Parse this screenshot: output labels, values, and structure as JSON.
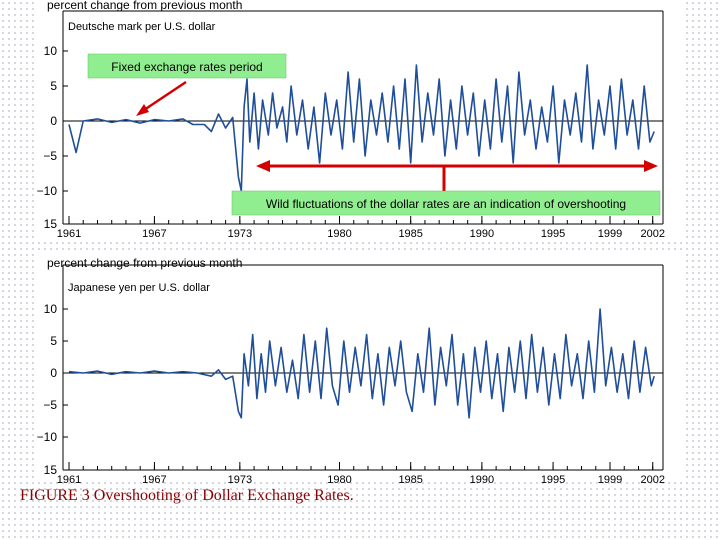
{
  "chart_data": [
    {
      "type": "line",
      "title": "Deutsche mark per U.S. dollar",
      "ylabel": "percent change from previous month",
      "xlabel": "",
      "ylim": [
        -15,
        15
      ],
      "y_ticks": [
        10,
        5,
        0,
        -5,
        -10,
        15
      ],
      "y_tick_labels": [
        "10",
        "5",
        "0",
        "−5",
        "−10",
        "15"
      ],
      "x_ticks": [
        1961,
        1967,
        1973,
        1980,
        1985,
        1990,
        1995,
        1999,
        2002
      ],
      "x_tick_labels": [
        "1961",
        "1967",
        "1973",
        "1980",
        "1985",
        "1990",
        "1995",
        "1999",
        "2002"
      ],
      "xlim": [
        1961,
        2002.3
      ],
      "color": "#1f4e9a",
      "series": [
        {
          "name": "Deutsche mark per U.S. dollar",
          "x": [
            1961.0,
            1961.5,
            1962.0,
            1963.0,
            1964.0,
            1965.0,
            1966.0,
            1967.0,
            1968.0,
            1969.0,
            1969.7,
            1970.5,
            1971.0,
            1971.5,
            1972.0,
            1972.5,
            1972.9,
            1973.1,
            1973.3,
            1973.5,
            1973.7,
            1974.0,
            1974.3,
            1974.6,
            1975.0,
            1975.3,
            1975.6,
            1976.0,
            1976.3,
            1976.6,
            1977.0,
            1977.4,
            1977.8,
            1978.2,
            1978.6,
            1979.0,
            1979.4,
            1979.8,
            1980.2,
            1980.6,
            1981.0,
            1981.4,
            1981.8,
            1982.2,
            1982.6,
            1983.0,
            1983.4,
            1983.8,
            1984.2,
            1984.6,
            1985.0,
            1985.4,
            1985.8,
            1986.2,
            1986.6,
            1987.0,
            1987.4,
            1987.8,
            1988.2,
            1988.6,
            1989.0,
            1989.4,
            1989.8,
            1990.2,
            1990.6,
            1991.0,
            1991.4,
            1991.8,
            1992.2,
            1992.6,
            1993.0,
            1993.4,
            1993.8,
            1994.2,
            1994.6,
            1995.0,
            1995.4,
            1995.8,
            1996.2,
            1996.6,
            1997.0,
            1997.4,
            1997.8,
            1998.2,
            1998.6,
            1999.0,
            1999.4,
            1999.8,
            2000.2,
            2000.6,
            2001.0,
            2001.4,
            2001.8,
            2002.1
          ],
          "values": [
            -0.5,
            -4.5,
            0,
            0.3,
            -0.2,
            0.2,
            -0.3,
            0.2,
            0,
            0.3,
            -0.5,
            -0.5,
            -1.5,
            1,
            -1,
            0.5,
            -8,
            -10,
            2,
            6,
            -3,
            4,
            -4,
            3,
            -2,
            4,
            -1,
            2,
            -3,
            5,
            -2,
            3,
            -4,
            2,
            -6,
            4,
            -2,
            3,
            -4,
            7,
            -3,
            6,
            -5,
            3,
            -2,
            4,
            -3,
            5,
            -4,
            6,
            -6,
            8,
            -3,
            4,
            -2,
            6,
            -5,
            3,
            -4,
            5,
            -2,
            4,
            -5,
            3,
            -4,
            6,
            -3,
            5,
            -6,
            7,
            -2,
            3,
            -4,
            2,
            -3,
            5,
            -6,
            3,
            -2,
            4,
            -3,
            8,
            -4,
            3,
            -2,
            5,
            -4,
            6,
            -2,
            3,
            -4,
            5,
            -3,
            -1.5
          ]
        }
      ],
      "annotations": [
        {
          "text": "Fixed exchange rates period"
        },
        {
          "text": "Wild fluctuations of the dollar rates are an indication of overshooting"
        }
      ]
    },
    {
      "type": "line",
      "title": "Japanese yen per U.S. dollar",
      "ylabel": "percent change from previous month",
      "xlabel": "",
      "ylim": [
        -15,
        15
      ],
      "y_ticks": [
        10,
        5,
        0,
        -5,
        -10,
        15
      ],
      "y_tick_labels": [
        "10",
        "5",
        "0",
        "−5",
        "−10",
        "15"
      ],
      "x_ticks": [
        1961,
        1967,
        1973,
        1980,
        1985,
        1990,
        1995,
        1999,
        2002
      ],
      "x_tick_labels": [
        "1961",
        "1967",
        "1973",
        "1980",
        "1985",
        "1990",
        "1995",
        "1999",
        "2002"
      ],
      "xlim": [
        1961,
        2002.3
      ],
      "color": "#1f4e9a",
      "series": [
        {
          "name": "Japanese yen per U.S. dollar",
          "x": [
            1961.0,
            1962.0,
            1963.0,
            1964.0,
            1965.0,
            1966.0,
            1967.0,
            1968.0,
            1969.0,
            1970.0,
            1971.0,
            1971.5,
            1972.0,
            1972.5,
            1972.9,
            1973.1,
            1973.3,
            1973.6,
            1973.9,
            1974.2,
            1974.5,
            1974.8,
            1975.1,
            1975.5,
            1975.9,
            1976.3,
            1976.7,
            1977.1,
            1977.5,
            1977.9,
            1978.3,
            1978.7,
            1979.1,
            1979.5,
            1979.9,
            1980.3,
            1980.7,
            1981.1,
            1981.5,
            1981.9,
            1982.3,
            1982.7,
            1983.1,
            1983.5,
            1983.9,
            1984.3,
            1984.7,
            1985.1,
            1985.5,
            1985.9,
            1986.3,
            1986.7,
            1987.1,
            1987.5,
            1987.9,
            1988.3,
            1988.7,
            1989.1,
            1989.5,
            1989.9,
            1990.3,
            1990.7,
            1991.1,
            1991.5,
            1991.9,
            1992.3,
            1992.7,
            1993.1,
            1993.5,
            1993.9,
            1994.3,
            1994.7,
            1995.1,
            1995.5,
            1995.9,
            1996.3,
            1996.7,
            1997.1,
            1997.5,
            1997.9,
            1998.3,
            1998.7,
            1999.1,
            1999.5,
            1999.9,
            2000.3,
            2000.7,
            2001.1,
            2001.5,
            2001.9,
            2002.1
          ],
          "values": [
            0.2,
            0,
            0.3,
            -0.2,
            0.2,
            0,
            0.3,
            0,
            0.2,
            0,
            -0.5,
            0.5,
            -1,
            -0.5,
            -6,
            -7,
            3,
            -2,
            6,
            -4,
            3,
            -3,
            5,
            -2,
            4,
            -3,
            2,
            -4,
            6,
            -3,
            5,
            -4,
            7,
            -2,
            -5,
            5,
            -3,
            4,
            -2,
            6,
            -4,
            3,
            -5,
            4,
            -2,
            5,
            -3,
            -6,
            3,
            -3,
            7,
            -5,
            4,
            -2,
            6,
            -5,
            3,
            -7,
            4,
            -3,
            5,
            -4,
            3,
            -6,
            4,
            -3,
            5,
            -4,
            6,
            -3,
            4,
            -5,
            3,
            -4,
            6,
            -2,
            3,
            -4,
            5,
            -3,
            10,
            -2,
            4,
            -3,
            3,
            -4,
            5,
            -3,
            4,
            -2,
            -0.5
          ]
        }
      ]
    }
  ],
  "caption": "FIGURE 3 Overshooting of Dollar Exchange Rates."
}
